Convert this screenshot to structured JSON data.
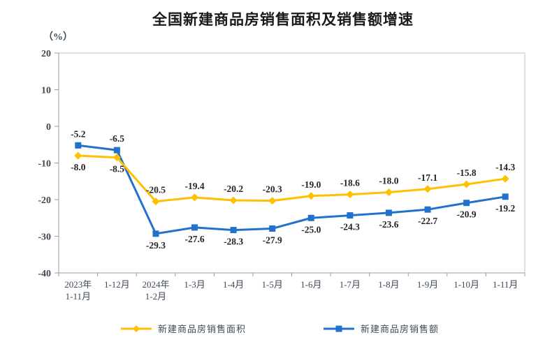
{
  "chart_data": {
    "type": "line",
    "title": "全国新建商品房销售面积及销售额增速",
    "ylabel": "（%）",
    "xlabel": "",
    "ylim": [
      -40,
      20
    ],
    "y_ticks": [
      20,
      10,
      0,
      -10,
      -20,
      -30,
      -40
    ],
    "grid": false,
    "legend_position": "bottom",
    "categories": [
      "2023年\n1-11月",
      "1-12月",
      "2024年\n1-2月",
      "1-3月",
      "1-4月",
      "1-5月",
      "1-6月",
      "1-7月",
      "1-8月",
      "1-9月",
      "1-10月",
      "1-11月"
    ],
    "series": [
      {
        "name": "新建商品房销售面积",
        "marker": "diamond",
        "color": "#FFC000",
        "values": [
          -8.0,
          -8.5,
          -20.5,
          -19.4,
          -20.2,
          -20.3,
          -19.0,
          -18.6,
          -18.0,
          -17.1,
          -15.8,
          -14.3
        ]
      },
      {
        "name": "新建商品房销售额",
        "marker": "square",
        "color": "#2271CC",
        "values": [
          -5.2,
          -6.5,
          -29.3,
          -27.6,
          -28.3,
          -27.9,
          -25.0,
          -24.3,
          -23.6,
          -22.7,
          -20.9,
          -19.2
        ]
      }
    ]
  },
  "colors": {
    "axis_line": "#9b9b9b",
    "plot_border": "#c0c0c0",
    "tick": "#9b9b9b",
    "title_text": "#1a1a1a",
    "axis_text": "#3f4a58",
    "data_label_text": "#262626"
  }
}
